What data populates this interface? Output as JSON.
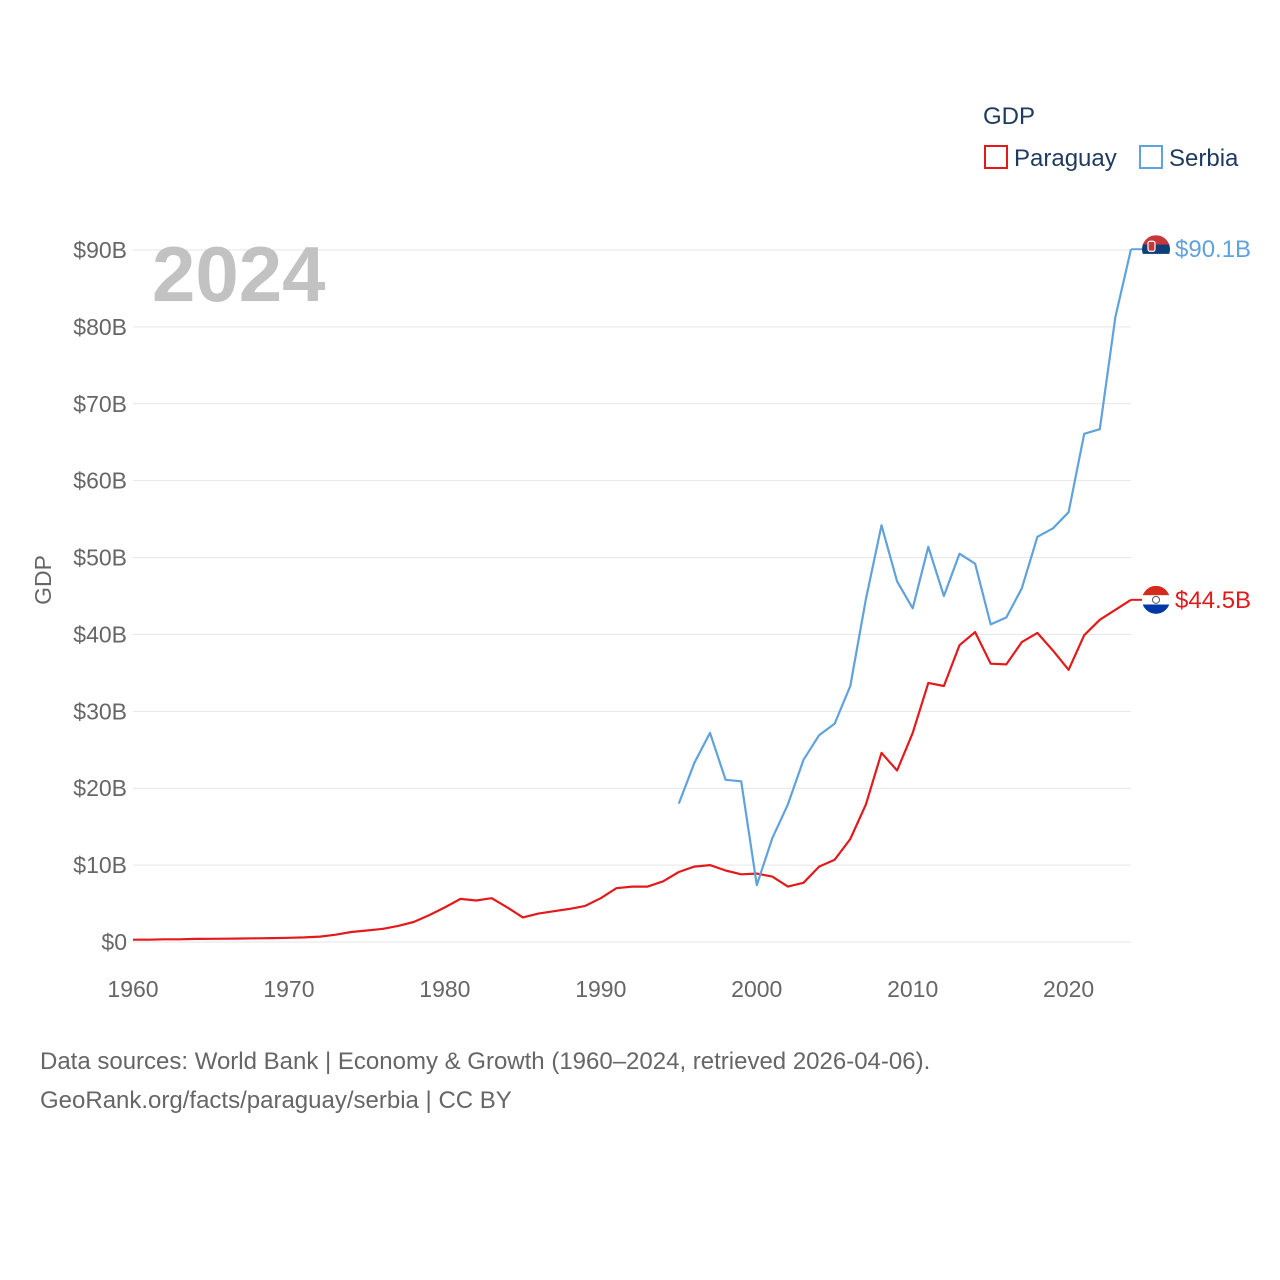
{
  "chart_data": {
    "type": "line",
    "title": "",
    "legend_title": "GDP",
    "legend_position": "top-right",
    "year_label": "2024",
    "xlabel": "",
    "ylabel": "GDP",
    "xlim": [
      1960,
      2024
    ],
    "ylim": [
      0,
      90
    ],
    "x_ticks": [
      1960,
      1970,
      1980,
      1990,
      2000,
      2010,
      2020
    ],
    "x_tick_labels": [
      "1960",
      "1970",
      "1980",
      "1990",
      "2000",
      "2010",
      "2020"
    ],
    "y_ticks": [
      0,
      10,
      20,
      30,
      40,
      50,
      60,
      70,
      80,
      90
    ],
    "y_tick_labels": [
      "$0",
      "$10B",
      "$20B",
      "$30B",
      "$40B",
      "$50B",
      "$60B",
      "$70B",
      "$80B",
      "$90B"
    ],
    "grid": true,
    "series": [
      {
        "name": "Paraguay",
        "color": "#e31a1c",
        "end_label": "$44.5B",
        "x": [
          1960,
          1961,
          1962,
          1963,
          1964,
          1965,
          1966,
          1967,
          1968,
          1969,
          1970,
          1971,
          1972,
          1973,
          1974,
          1975,
          1976,
          1977,
          1978,
          1979,
          1980,
          1981,
          1982,
          1983,
          1984,
          1985,
          1986,
          1987,
          1988,
          1989,
          1990,
          1991,
          1992,
          1993,
          1994,
          1995,
          1996,
          1997,
          1998,
          1999,
          2000,
          2001,
          2002,
          2003,
          2004,
          2005,
          2006,
          2007,
          2008,
          2009,
          2010,
          2011,
          2012,
          2013,
          2014,
          2015,
          2016,
          2017,
          2018,
          2019,
          2020,
          2021,
          2022,
          2023,
          2024
        ],
        "values": [
          0.3,
          0.3,
          0.35,
          0.35,
          0.4,
          0.42,
          0.43,
          0.46,
          0.48,
          0.51,
          0.55,
          0.6,
          0.7,
          0.95,
          1.3,
          1.5,
          1.7,
          2.1,
          2.6,
          3.5,
          4.5,
          5.6,
          5.4,
          5.7,
          4.5,
          3.2,
          3.7,
          4.0,
          4.3,
          4.7,
          5.7,
          7.0,
          7.2,
          7.2,
          7.9,
          9.1,
          9.8,
          10.0,
          9.3,
          8.8,
          8.9,
          8.5,
          7.2,
          7.7,
          9.8,
          10.7,
          13.4,
          17.9,
          24.6,
          22.3,
          27.2,
          33.7,
          33.3,
          38.6,
          40.3,
          36.2,
          36.1,
          39.0,
          40.2,
          37.9,
          35.4,
          39.9,
          41.9,
          43.2,
          44.5
        ]
      },
      {
        "name": "Serbia",
        "color": "#5fa2dd",
        "end_label": "$90.1B",
        "x": [
          1995,
          1996,
          1997,
          1998,
          1999,
          2000,
          2001,
          2002,
          2003,
          2004,
          2005,
          2006,
          2007,
          2008,
          2009,
          2010,
          2011,
          2012,
          2013,
          2014,
          2015,
          2016,
          2017,
          2018,
          2019,
          2020,
          2021,
          2022,
          2023,
          2024
        ],
        "values": [
          18.0,
          23.3,
          27.2,
          21.1,
          20.9,
          7.4,
          13.5,
          17.9,
          23.7,
          26.9,
          28.4,
          33.3,
          44.6,
          54.2,
          46.9,
          43.4,
          51.4,
          45.0,
          50.5,
          49.2,
          41.3,
          42.2,
          46.0,
          52.7,
          53.8,
          55.9,
          66.1,
          66.7,
          81.3,
          90.1
        ]
      }
    ],
    "source_lines": [
      "Data sources: World Bank | Economy & Growth (1960–2024, retrieved 2026-04-06).",
      "GeoRank.org/facts/paraguay/serbia | CC BY"
    ]
  }
}
